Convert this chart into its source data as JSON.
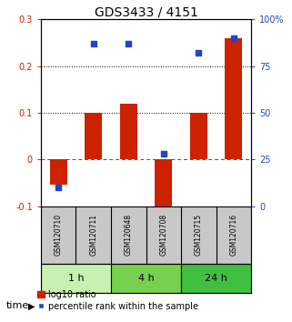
{
  "title": "GDS3433 / 4151",
  "samples": [
    "GSM120710",
    "GSM120711",
    "GSM120648",
    "GSM120708",
    "GSM120715",
    "GSM120716"
  ],
  "log10_ratio": [
    -0.055,
    0.1,
    0.12,
    -0.105,
    0.1,
    0.26
  ],
  "percentile_rank_pct": [
    10,
    87,
    87,
    28,
    82,
    90
  ],
  "time_groups": [
    {
      "label": "1 h",
      "samples": [
        0,
        1
      ],
      "color": "#c8f0b0"
    },
    {
      "label": "4 h",
      "samples": [
        2,
        3
      ],
      "color": "#78d050"
    },
    {
      "label": "24 h",
      "samples": [
        4,
        5
      ],
      "color": "#40c040"
    }
  ],
  "ylim_left": [
    -0.1,
    0.3
  ],
  "ylim_right": [
    0,
    100
  ],
  "yticks_left": [
    -0.1,
    0.0,
    0.1,
    0.2,
    0.3
  ],
  "yticks_right": [
    0,
    25,
    50,
    75,
    100
  ],
  "ytick_labels_left": [
    "-0.1",
    "0",
    "0.1",
    "0.2",
    "0.3"
  ],
  "ytick_labels_right": [
    "0",
    "25",
    "50",
    "75",
    "100%"
  ],
  "hlines": [
    0.1,
    0.2
  ],
  "zero_line": 0.0,
  "bar_color": "#cc2200",
  "dot_color": "#2244cc",
  "bar_width": 0.5,
  "dot_size": 22,
  "bg_color": "#ffffff",
  "plot_bg": "#ffffff",
  "zero_line_color": "#cc2200",
  "hline_color": "#000000",
  "legend_items": [
    "log10 ratio",
    "percentile rank within the sample"
  ],
  "time_label": "time",
  "right_axis_color": "#2244cc",
  "left_axis_color": "#cc2200",
  "sample_bg_color": "#c8c8c8",
  "title_fontsize": 10,
  "tick_fontsize": 7,
  "sample_fontsize": 5.5,
  "legend_fontsize": 7,
  "time_fontsize": 8,
  "group_fontsize": 8
}
